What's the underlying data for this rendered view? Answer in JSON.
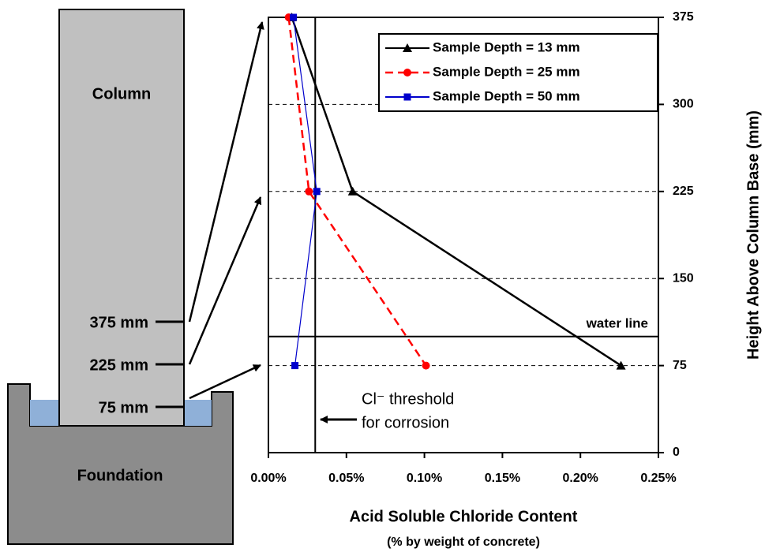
{
  "diagram": {
    "column": "Column",
    "foundation": "Foundation",
    "heights": [
      "375 mm",
      "225 mm",
      "75 mm"
    ]
  },
  "chart_data": {
    "type": "line",
    "x_label": "Acid Soluble Chloride Content",
    "x_sublabel": "(% by weight of concrete)",
    "y_label": "Height Above Column Base  (mm)",
    "annotations": [
      "Cl⁻ threshold",
      "for corrosion",
      "water line"
    ],
    "xlim": [
      0,
      0.25
    ],
    "xticks": [
      {
        "value": 0,
        "label": "0.00%"
      },
      {
        "value": 0.05,
        "label": "0.05%"
      },
      {
        "value": 0.1,
        "label": "0.10%"
      },
      {
        "value": 0.15,
        "label": "0.15%"
      },
      {
        "value": 0.2,
        "label": "0.20%"
      },
      {
        "value": 0.25,
        "label": "0.25%"
      }
    ],
    "ylim": [
      0,
      375
    ],
    "yticks": [
      0,
      75,
      150,
      225,
      300,
      375
    ],
    "grid": true,
    "legend": "upper right",
    "threshold": 0.03,
    "water_line": 100,
    "series": [
      {
        "name": "Sample Depth = 13 mm",
        "color": "#000000",
        "marker": "triangle",
        "dash": "solid",
        "x": [
          0.015,
          0.054,
          0.226
        ],
        "values": [
          375,
          225,
          75
        ]
      },
      {
        "name": "Sample Depth = 25 mm",
        "color": "#ff0000",
        "marker": "circle",
        "dash": "dashed",
        "x": [
          0.013,
          0.026,
          0.101
        ],
        "values": [
          375,
          225,
          75
        ]
      },
      {
        "name": "Sample Depth = 50 mm",
        "color": "#0000cc",
        "marker": "square",
        "dash": "solid",
        "x": [
          0.016,
          0.031,
          0.017
        ],
        "values": [
          375,
          225,
          75
        ]
      }
    ]
  }
}
